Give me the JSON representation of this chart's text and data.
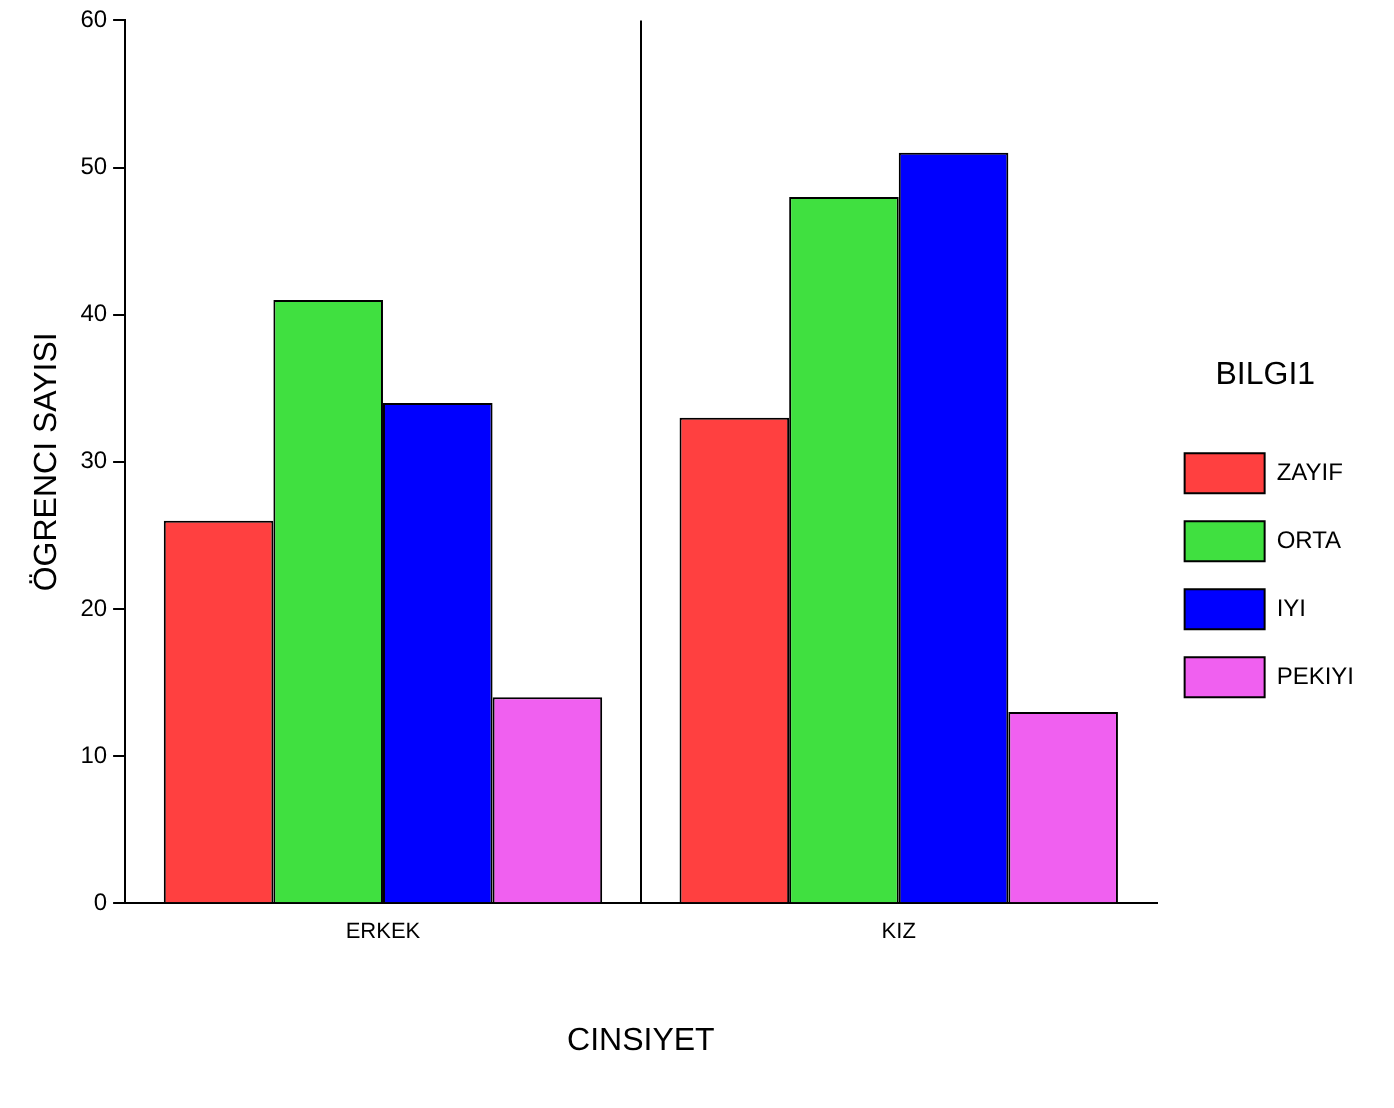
{
  "chart_data": {
    "type": "bar",
    "xlabel": "CINSIYET",
    "ylabel": "ÖGRENCI SAYISI",
    "legend_title": "BILGI1",
    "categories": [
      "ERKEK",
      "KIZ"
    ],
    "series": [
      {
        "name": "ZAYIF",
        "color": "#ff4040",
        "values": [
          26,
          33
        ]
      },
      {
        "name": "ORTA",
        "color": "#40e040",
        "values": [
          41,
          48
        ]
      },
      {
        "name": "IYI",
        "color": "#0000ff",
        "values": [
          34,
          51
        ]
      },
      {
        "name": "PEKIYI",
        "color": "#f060f0",
        "values": [
          14,
          13
        ]
      }
    ],
    "ylim": [
      0,
      60
    ],
    "yticks": [
      0,
      10,
      20,
      30,
      40,
      50,
      60
    ],
    "grid": "x",
    "legend": "right"
  }
}
